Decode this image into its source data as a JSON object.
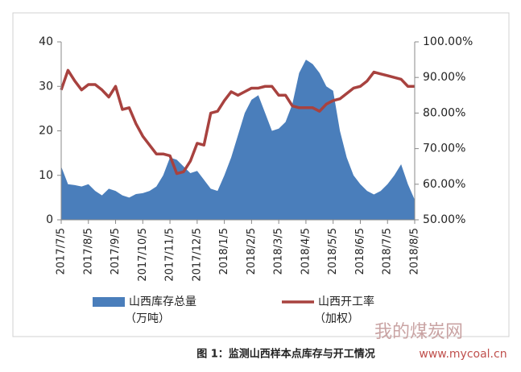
{
  "chart_data": {
    "type": "area-line",
    "categories": [
      "2017/7/5",
      null,
      null,
      null,
      "2017/8/5",
      null,
      null,
      null,
      "2017/9/5",
      null,
      null,
      null,
      "2017/10/5",
      null,
      null,
      null,
      "2017/11/5",
      null,
      null,
      null,
      "2017/12/5",
      null,
      null,
      null,
      "2018/1/5",
      null,
      null,
      null,
      "2018/2/5",
      null,
      null,
      null,
      "2018/3/5",
      null,
      null,
      null,
      "2018/4/5",
      null,
      null,
      null,
      "2018/5/5",
      null,
      null,
      null,
      "2018/6/5",
      null,
      null,
      null,
      "2018/7/5",
      null,
      null,
      null,
      "2018/8/5"
    ],
    "series": [
      {
        "name": "山西库存总量",
        "unit": "（万吨）",
        "color": "#4a7ebb",
        "kind": "area",
        "values": [
          12,
          8,
          7.8,
          7.5,
          8,
          6.5,
          5.5,
          7,
          6.5,
          5.5,
          5,
          5.8,
          6,
          6.5,
          7.5,
          10,
          14,
          13.5,
          12,
          10.5,
          11,
          9,
          7,
          6.5,
          10,
          14,
          19,
          24,
          27,
          28,
          24,
          20,
          20.5,
          22,
          26,
          33,
          36,
          35,
          33,
          30,
          29,
          20,
          14,
          10,
          8,
          6.5,
          5.7,
          6.5,
          8,
          10,
          12.5,
          8,
          4.5
        ]
      },
      {
        "name": "山西开工率",
        "unit": "（加权）",
        "color": "#a8423f",
        "kind": "line",
        "axis": "y2",
        "values": [
          86.5,
          92,
          89,
          86.5,
          88,
          88,
          86.5,
          84.5,
          87.5,
          81,
          81.5,
          77,
          73.5,
          71,
          68.5,
          68.5,
          68,
          63,
          63.5,
          66.5,
          71.5,
          71,
          80,
          80.5,
          83.5,
          86,
          85,
          86,
          87,
          87,
          87.5,
          87.5,
          85,
          85,
          82,
          81.5,
          81.5,
          81.5,
          80.5,
          82.5,
          83.5,
          84,
          85.5,
          87,
          87.5,
          89,
          91.5,
          91,
          90.5,
          90,
          89.5,
          87.5,
          87.5
        ]
      }
    ],
    "ylim": [
      0,
      40
    ],
    "yticks": [
      0,
      10,
      20,
      30,
      40
    ],
    "y2lim": [
      50,
      100
    ],
    "y2ticks": [
      {
        "value": 50,
        "label": "50.00%"
      },
      {
        "value": 60,
        "label": "60.00%"
      },
      {
        "value": 70,
        "label": "70.00%"
      },
      {
        "value": 80,
        "label": "80.00%"
      },
      {
        "value": 90,
        "label": "90.00%"
      },
      {
        "value": 100,
        "label": "100.00%"
      }
    ],
    "legend": "bottom",
    "caption": "图 1：监测山西样本点库存与开工情况",
    "watermark": "我的煤炭网",
    "watermark_url": "www.mycoal.cn"
  }
}
